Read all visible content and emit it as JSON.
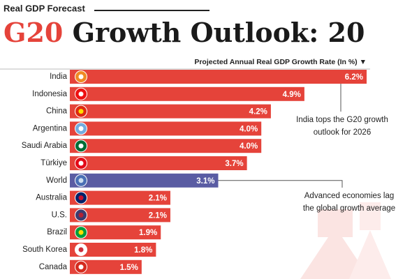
{
  "chart_data": {
    "type": "bar",
    "supertitle": "Real GDP Forecast",
    "title_highlight": "G20",
    "title": "Growth Outlook: 20",
    "x_label": "Projected Annual Real GDP Growth Rate (In %) ▼",
    "categories": [
      "India",
      "Indonesia",
      "China",
      "Argentina",
      "Saudi Arabia",
      "Türkiye",
      "World",
      "Australia",
      "U.S.",
      "Brazil",
      "South Korea",
      "Canada"
    ],
    "values": [
      6.2,
      4.9,
      4.2,
      4.0,
      4.0,
      3.7,
      3.1,
      2.1,
      2.1,
      1.9,
      1.8,
      1.5
    ],
    "value_labels": [
      "6.2%",
      "4.9%",
      "4.2%",
      "4.0%",
      "4.0%",
      "3.7%",
      "3.1%",
      "2.1%",
      "2.1%",
      "1.9%",
      "1.8%",
      "1.5%"
    ],
    "colors": [
      "#e5433a",
      "#e5433a",
      "#e5433a",
      "#e5433a",
      "#e5433a",
      "#e5433a",
      "#5a5ca3",
      "#e5433a",
      "#e5433a",
      "#e5433a",
      "#e5433a",
      "#e5433a"
    ],
    "annotations": [
      [
        "India tops the G20 growth",
        "outlook for 2026"
      ],
      [
        "Advanced economies lag",
        "the global growth average"
      ]
    ]
  }
}
